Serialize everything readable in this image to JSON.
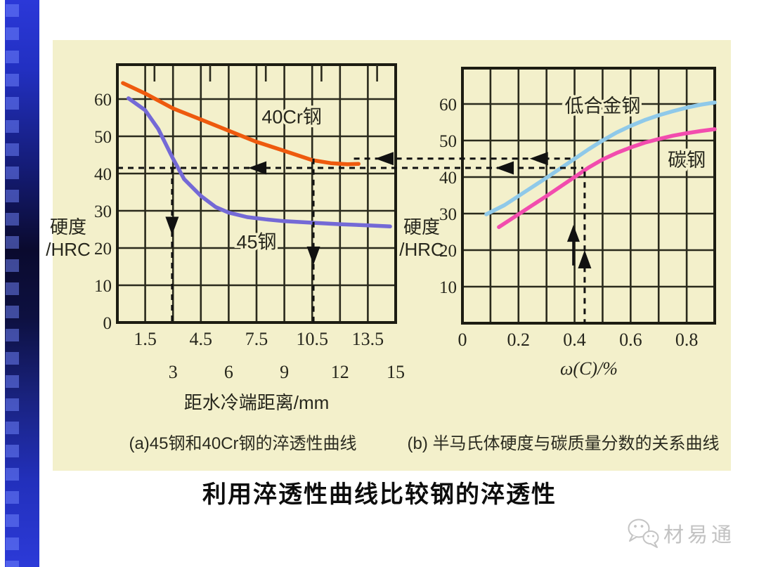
{
  "slide": {
    "title": "利用淬透性曲线比较钢的淬透性",
    "watermark": "材易通"
  },
  "chart_data": [
    {
      "id": "a",
      "type": "line",
      "caption": "(a)45钢和40Cr钢的淬透性曲线",
      "xlabel": "距水冷端距离/mm",
      "ylabel": "硬度/HRC",
      "ylabel_lines": [
        "硬度",
        "/HRC"
      ],
      "xlim": [
        0,
        15
      ],
      "ylim": [
        0,
        69
      ],
      "x_grid_step": 1.5,
      "y_grid_values": [
        0,
        10,
        20,
        30,
        40,
        50,
        60
      ],
      "y_tick_values": [
        0,
        10,
        20,
        30,
        40,
        50,
        60
      ],
      "x_tick_rows": [
        {
          "values": [
            1.5,
            4.5,
            7.5,
            10.5,
            13.5
          ]
        },
        {
          "values": [
            3,
            6,
            9,
            12,
            15
          ]
        }
      ],
      "top_ticks": [
        2,
        5,
        8,
        11,
        14
      ],
      "grid": true,
      "legend_position": "inline-labels",
      "series": [
        {
          "name": "40Cr钢",
          "color": "#ee5a0e",
          "label_at": [
            9.4,
            55.2
          ],
          "points": [
            [
              0.3,
              64.3
            ],
            [
              1.5,
              61.5
            ],
            [
              3,
              57.5
            ],
            [
              4.5,
              54.5
            ],
            [
              6,
              51.5
            ],
            [
              7.5,
              48.5
            ],
            [
              9,
              46.1
            ],
            [
              10.5,
              43.6
            ],
            [
              11.5,
              42.8
            ],
            [
              12.4,
              42.5
            ],
            [
              13,
              42.6
            ]
          ]
        },
        {
          "name": "45钢",
          "color": "#7469d6",
          "label_at": [
            7.5,
            21.6
          ],
          "points": [
            [
              0.6,
              60.2
            ],
            [
              1.5,
              57
            ],
            [
              2.2,
              52
            ],
            [
              3,
              44
            ],
            [
              3.6,
              38.5
            ],
            [
              4.5,
              34
            ],
            [
              5.3,
              31
            ],
            [
              6,
              29.5
            ],
            [
              7,
              28.3
            ],
            [
              8,
              27.7
            ],
            [
              9,
              27.2
            ],
            [
              10.5,
              26.8
            ],
            [
              12,
              26.4
            ],
            [
              13.5,
              26.1
            ],
            [
              14.7,
              25.8
            ]
          ]
        }
      ]
    },
    {
      "id": "b",
      "type": "line",
      "caption": "(b) 半马氏体硬度与碳质量分数的关系曲线",
      "xlabel": "ω(C)/%",
      "ylabel": "硬度/HRC",
      "ylabel_lines": [
        "硬度",
        "/HRC"
      ],
      "xlim": [
        0,
        0.9
      ],
      "ylim": [
        0,
        69
      ],
      "x_grid_step": 0.1,
      "y_grid_values": [
        0,
        10,
        20,
        30,
        40,
        50,
        60
      ],
      "y_tick_values": [
        10,
        20,
        30,
        40,
        50,
        60
      ],
      "x_tick_rows": [
        {
          "values": [
            0,
            0.2,
            0.4,
            0.6,
            0.8
          ]
        }
      ],
      "top_ticks": [],
      "grid": true,
      "legend_position": "inline-labels",
      "series": [
        {
          "name": "低合金钢",
          "color": "#8fc9e9",
          "label_at": [
            0.5,
            59.4
          ],
          "points": [
            [
              0.085,
              29.8
            ],
            [
              0.15,
              32.3
            ],
            [
              0.2,
              34.8
            ],
            [
              0.25,
              37.3
            ],
            [
              0.3,
              39.8
            ],
            [
              0.35,
              42.4
            ],
            [
              0.4,
              45
            ],
            [
              0.45,
              47.6
            ],
            [
              0.5,
              50
            ],
            [
              0.55,
              52.2
            ],
            [
              0.6,
              54
            ],
            [
              0.65,
              55.6
            ],
            [
              0.7,
              56.9
            ],
            [
              0.75,
              58
            ],
            [
              0.8,
              59
            ],
            [
              0.85,
              59.8
            ],
            [
              0.9,
              60.4
            ]
          ]
        },
        {
          "name": "碳钢",
          "color": "#f24cae",
          "label_at": [
            0.8,
            44.6
          ],
          "points": [
            [
              0.13,
              26.3
            ],
            [
              0.2,
              29.8
            ],
            [
              0.25,
              32.3
            ],
            [
              0.3,
              34.8
            ],
            [
              0.35,
              37.4
            ],
            [
              0.4,
              40
            ],
            [
              0.45,
              42.6
            ],
            [
              0.5,
              44.8
            ],
            [
              0.55,
              46.6
            ],
            [
              0.6,
              48.1
            ],
            [
              0.65,
              49.4
            ],
            [
              0.7,
              50.4
            ],
            [
              0.75,
              51.3
            ],
            [
              0.8,
              52
            ],
            [
              0.85,
              52.6
            ],
            [
              0.9,
              53.1
            ]
          ]
        }
      ]
    }
  ],
  "annotations": {
    "guides": [
      {
        "type": "hline",
        "hrc": 44,
        "x_from": {
          "chart": "a",
          "v": 12.75
        },
        "x_to": {
          "chart": "b",
          "v": 0.398
        },
        "arrows": [
          {
            "chart": "a",
            "v": 13.9
          },
          {
            "chart": "b",
            "v": 0.24
          }
        ],
        "dir": "left"
      },
      {
        "type": "hline",
        "hrc": 41.5,
        "x_from": {
          "chart": "a",
          "v": 0
        },
        "x_to": {
          "chart": "b",
          "v": 0.431
        },
        "arrows": [
          {
            "chart": "a",
            "v": 7.05
          },
          {
            "chart": "b",
            "v": 0.118
          }
        ],
        "dir": "left"
      },
      {
        "type": "vline",
        "chart": "a",
        "v": 2.95,
        "hrc_from": 41.5,
        "hrc_to": 0,
        "arrow_hrc": 23.5,
        "dir": "down"
      },
      {
        "type": "vline",
        "chart": "a",
        "v": 10.57,
        "hrc_from": 44,
        "hrc_to": 0,
        "arrow_hrc": 15.5,
        "dir": "down"
      },
      {
        "type": "vline",
        "chart": "b",
        "v": 0.436,
        "hrc_from": 41.5,
        "hrc_to": 0,
        "arrow_hrc": 20,
        "dir": "up"
      },
      {
        "type": "varrow",
        "chart": "b",
        "v": 0.396,
        "hrc_from": 15.8,
        "hrc_to": 26.9,
        "dir": "up"
      }
    ]
  }
}
